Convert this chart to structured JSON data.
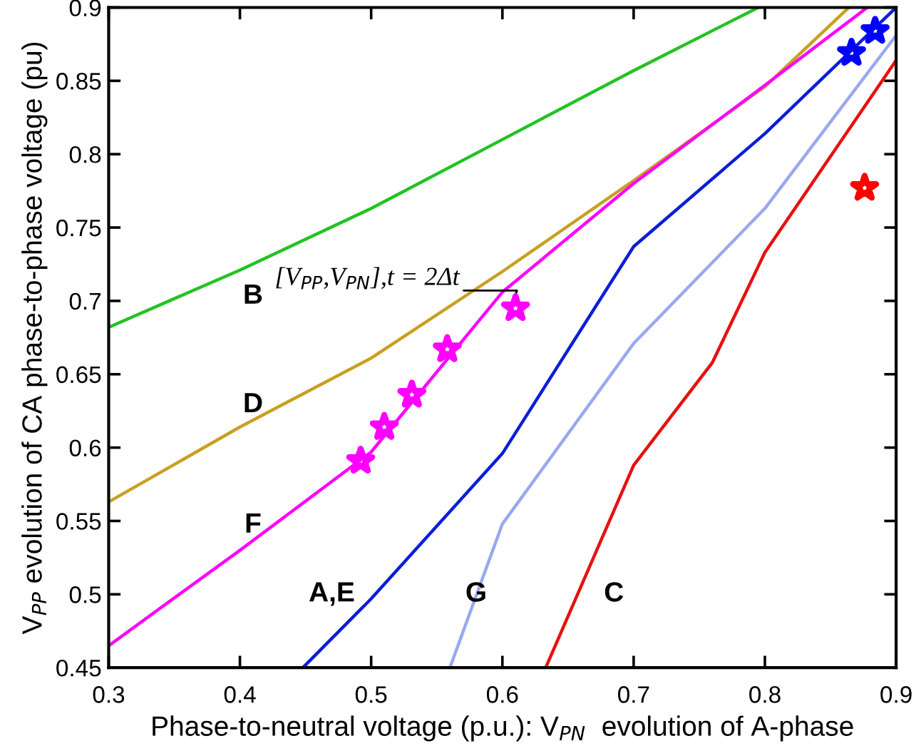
{
  "chart_data": {
    "type": "line",
    "xlabel": "Phase-to-neutral voltage (p.u.): V$_{PN}$  evolution of A-phase",
    "ylabel": "V$_{PP}$ evolution of CA phase-to-phase voltage (pu)",
    "xlim": [
      0.3,
      0.9
    ],
    "ylim": [
      0.45,
      0.9
    ],
    "xticks": [
      0.3,
      0.4,
      0.5,
      0.6,
      0.7,
      0.8,
      0.9
    ],
    "yticks": [
      0.45,
      0.5,
      0.55,
      0.6,
      0.65,
      0.7,
      0.75,
      0.8,
      0.85,
      0.9
    ],
    "grid": false,
    "line_style": "solid",
    "series": [
      {
        "color": "#22c322",
        "x": [
          0.3,
          0.4,
          0.5,
          0.6,
          0.7,
          0.795
        ],
        "values": [
          0.682,
          0.721,
          0.763,
          0.81,
          0.857,
          0.9
        ]
      },
      {
        "color": "#c8a020",
        "x": [
          0.3,
          0.4,
          0.5,
          0.6,
          0.7,
          0.8,
          0.864
        ],
        "values": [
          0.563,
          0.614,
          0.661,
          0.72,
          0.782,
          0.846,
          0.9
        ]
      },
      {
        "color": "#ff00ff",
        "x": [
          0.3,
          0.4,
          0.5,
          0.6,
          0.7,
          0.8,
          0.878
        ],
        "values": [
          0.465,
          0.53,
          0.597,
          0.706,
          0.78,
          0.847,
          0.9
        ]
      },
      {
        "color": "#0a1ed8",
        "x": [
          0.448,
          0.5,
          0.6,
          0.7,
          0.8,
          0.9
        ],
        "values": [
          0.45,
          0.497,
          0.596,
          0.737,
          0.814,
          0.9
        ]
      },
      {
        "color": "#9aa8f0",
        "x": [
          0.56,
          0.6,
          0.7,
          0.8,
          0.9
        ],
        "values": [
          0.45,
          0.548,
          0.671,
          0.763,
          0.881
        ]
      },
      {
        "color": "#e81010",
        "x": [
          0.633,
          0.7,
          0.76,
          0.8,
          0.9
        ],
        "values": [
          0.45,
          0.588,
          0.658,
          0.733,
          0.864
        ]
      },
      {
        "type": "scatter",
        "marker": "star",
        "color": "#ff00ff",
        "x": [
          0.492,
          0.51,
          0.531,
          0.558,
          0.61
        ],
        "values": [
          0.591,
          0.614,
          0.636,
          0.667,
          0.695
        ]
      },
      {
        "type": "scatter",
        "marker": "star",
        "color": "#0000ff",
        "x": [
          0.866,
          0.884
        ],
        "values": [
          0.869,
          0.884
        ]
      },
      {
        "type": "scatter",
        "marker": "star",
        "color": "#ff0000",
        "x": [
          0.876
        ],
        "values": [
          0.777
        ]
      }
    ],
    "annotations": [
      {
        "text": "[V$_{PP}$,V$_{PN}$],t = 2Δt",
        "x": 0.607,
        "y": 0.697
      },
      "B",
      "D",
      "F",
      "A,E",
      "G",
      "C"
    ]
  }
}
